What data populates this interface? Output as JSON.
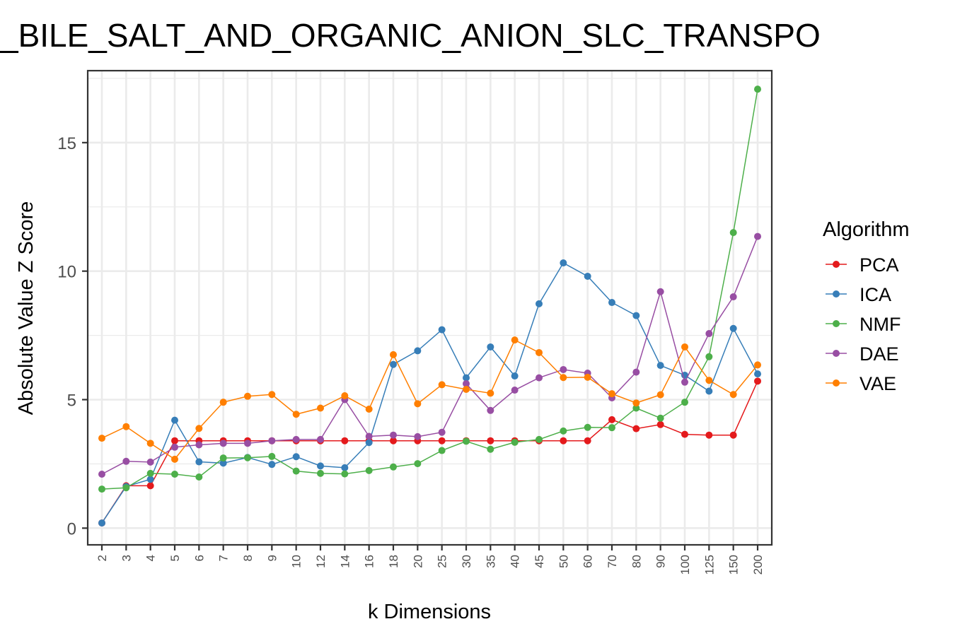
{
  "chart_data": {
    "type": "line",
    "title": "_BILE_SALT_AND_ORGANIC_ANION_SLC_TRANSPO",
    "xlabel": "k Dimensions",
    "ylabel": "Absolute Value Z Score",
    "x": [
      "2",
      "3",
      "4",
      "5",
      "6",
      "7",
      "8",
      "9",
      "10",
      "12",
      "14",
      "16",
      "18",
      "20",
      "25",
      "30",
      "35",
      "40",
      "45",
      "50",
      "60",
      "70",
      "80",
      "90",
      "100",
      "125",
      "150",
      "200"
    ],
    "yticks": [
      0,
      5,
      10,
      15
    ],
    "ylim": [
      -0.65,
      17.8
    ],
    "grid": true,
    "legend": {
      "title": "Algorithm",
      "position": "right"
    },
    "series": [
      {
        "name": "PCA",
        "color": "#e41a1c",
        "values": [
          0.2,
          1.65,
          1.65,
          3.4,
          3.4,
          3.4,
          3.4,
          3.4,
          3.4,
          3.4,
          3.4,
          3.4,
          3.4,
          3.4,
          3.4,
          3.4,
          3.4,
          3.4,
          3.4,
          3.4,
          3.4,
          4.22,
          3.87,
          4.03,
          3.65,
          3.62,
          3.62,
          5.72
        ]
      },
      {
        "name": "ICA",
        "color": "#377eb8",
        "values": [
          0.2,
          1.62,
          1.9,
          4.2,
          2.58,
          2.53,
          2.75,
          2.48,
          2.78,
          2.42,
          2.35,
          3.33,
          6.37,
          6.9,
          7.72,
          5.85,
          7.05,
          5.92,
          8.73,
          10.32,
          9.8,
          8.78,
          8.27,
          6.33,
          5.95,
          5.33,
          7.77,
          6.0
        ]
      },
      {
        "name": "NMF",
        "color": "#4daf4a",
        "values": [
          1.52,
          1.57,
          2.13,
          2.1,
          1.99,
          2.73,
          2.74,
          2.79,
          2.22,
          2.13,
          2.11,
          2.24,
          2.38,
          2.51,
          3.02,
          3.38,
          3.07,
          3.34,
          3.45,
          3.78,
          3.92,
          3.91,
          4.67,
          4.28,
          4.9,
          6.67,
          11.5,
          17.08
        ]
      },
      {
        "name": "DAE",
        "color": "#984ea3",
        "values": [
          2.1,
          2.6,
          2.57,
          3.15,
          3.24,
          3.3,
          3.3,
          3.4,
          3.45,
          3.45,
          5.0,
          3.57,
          3.62,
          3.56,
          3.73,
          5.62,
          4.58,
          5.37,
          5.85,
          6.17,
          6.03,
          5.07,
          6.07,
          9.2,
          5.68,
          7.57,
          9.0,
          11.35
        ]
      },
      {
        "name": "VAE",
        "color": "#ff7f00",
        "values": [
          3.5,
          3.95,
          3.3,
          2.68,
          3.88,
          4.9,
          5.13,
          5.2,
          4.43,
          4.67,
          5.15,
          4.63,
          6.75,
          4.84,
          5.58,
          5.4,
          5.25,
          7.32,
          6.83,
          5.86,
          5.87,
          5.23,
          4.87,
          5.19,
          7.05,
          5.75,
          5.2,
          6.35
        ]
      }
    ]
  }
}
